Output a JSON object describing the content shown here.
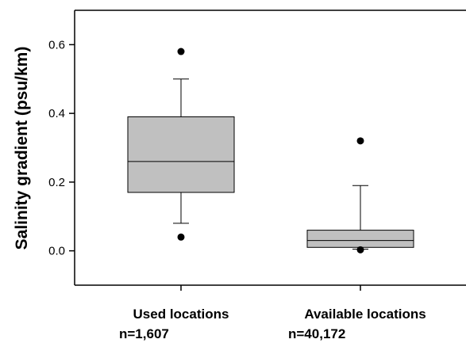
{
  "chart_data": {
    "type": "box",
    "ylabel": "Salinity gradient (psu/km)",
    "ylim": [
      -0.1,
      0.7
    ],
    "yticks": [
      0.0,
      0.2,
      0.4,
      0.6
    ],
    "ytick_labels": [
      "0.0",
      "0.2",
      "0.4",
      "0.6"
    ],
    "grid": false,
    "box_color": "#c0c0c0",
    "categories": [
      {
        "label": "Used locations",
        "n_label": "n=1,607"
      },
      {
        "label": "Available locations",
        "n_label": "n=40,172"
      }
    ],
    "boxes": [
      {
        "whisker_low": 0.08,
        "q1": 0.17,
        "median": 0.26,
        "q3": 0.39,
        "whisker_high": 0.5,
        "outlier_low": 0.04,
        "outlier_high": 0.58
      },
      {
        "whisker_low": 0.005,
        "q1": 0.01,
        "median": 0.03,
        "q3": 0.06,
        "whisker_high": 0.19,
        "outlier_low": 0.003,
        "outlier_high": 0.32
      }
    ]
  }
}
